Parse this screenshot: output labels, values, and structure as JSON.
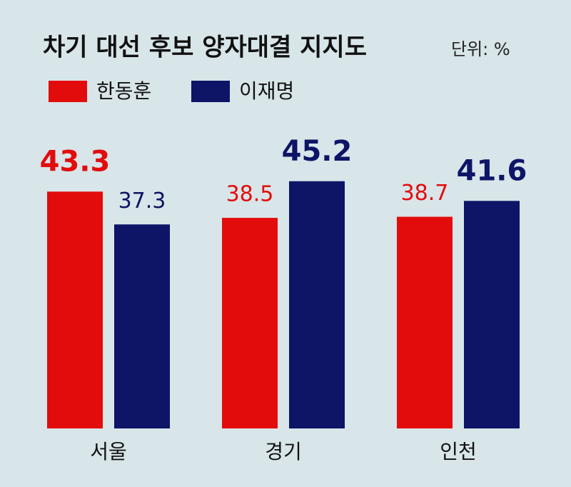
{
  "chart_data": {
    "type": "bar",
    "title": "차기 대선 후보 양자대결 지지도",
    "subtitle": "단위: %",
    "categories": [
      "서울",
      "경기",
      "인천"
    ],
    "series": [
      {
        "name": "한동훈",
        "color": "#e30c0c",
        "values": [
          43.3,
          38.5,
          38.7
        ]
      },
      {
        "name": "이재명",
        "color": "#0e1466",
        "values": [
          37.3,
          45.2,
          41.6
        ]
      }
    ]
  }
}
